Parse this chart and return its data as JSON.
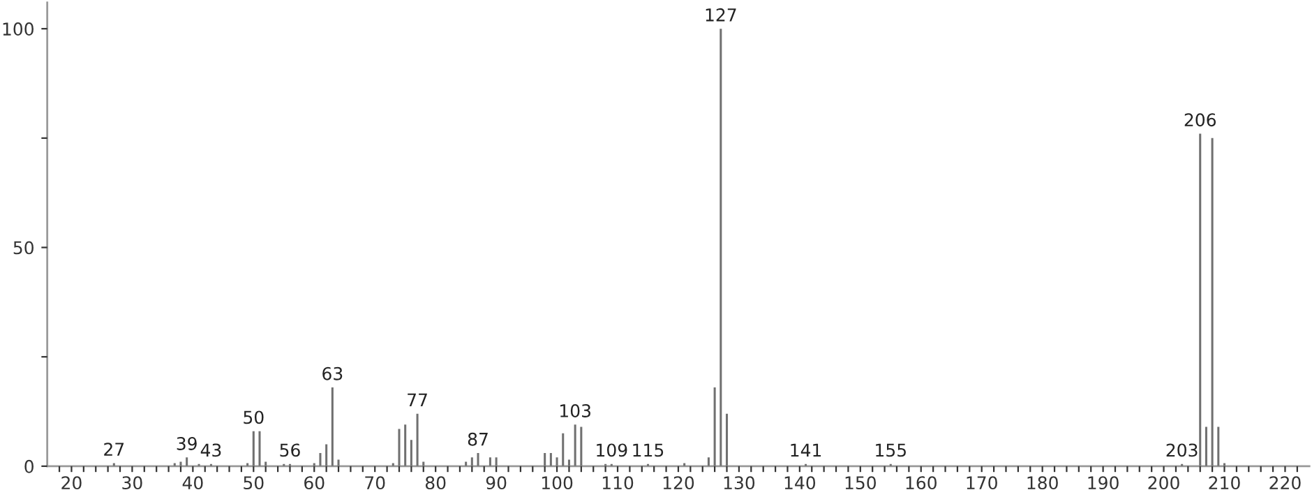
{
  "chart_data": {
    "type": "bar",
    "x": [
      27,
      37,
      38,
      39,
      41,
      43,
      49,
      50,
      51,
      52,
      55,
      56,
      60,
      61,
      62,
      63,
      64,
      73,
      74,
      75,
      76,
      77,
      78,
      85,
      86,
      87,
      89,
      90,
      98,
      99,
      100,
      101,
      102,
      103,
      104,
      108,
      109,
      115,
      121,
      125,
      126,
      127,
      128,
      141,
      155,
      203,
      206,
      207,
      208,
      209,
      210
    ],
    "values": [
      0.7,
      0.7,
      1,
      2,
      0.5,
      0.5,
      0.7,
      8,
      8,
      1,
      0.5,
      0.5,
      0.7,
      3,
      5,
      18,
      1.5,
      0.7,
      8.5,
      9.5,
      6,
      12,
      1,
      1,
      2,
      3,
      2,
      2,
      3,
      3,
      2,
      7.5,
      1.5,
      9.5,
      9,
      0.5,
      0.5,
      0.5,
      0.7,
      2,
      18,
      100,
      12,
      0.5,
      0.5,
      0.5,
      76,
      9,
      75,
      9,
      0.7
    ],
    "color": "#707070",
    "xlim": [
      16,
      224
    ],
    "ylim": [
      0,
      106
    ],
    "xticks": [
      {
        "value": 18,
        "label": null
      },
      20,
      {
        "value": 22,
        "label": null
      },
      {
        "value": 24,
        "label": null
      },
      {
        "value": 26,
        "label": null
      },
      {
        "value": 28,
        "label": null
      },
      30,
      {
        "value": 32,
        "label": null
      },
      {
        "value": 34,
        "label": null
      },
      {
        "value": 36,
        "label": null
      },
      {
        "value": 38,
        "label": null
      },
      40,
      {
        "value": 42,
        "label": null
      },
      {
        "value": 44,
        "label": null
      },
      {
        "value": 46,
        "label": null
      },
      {
        "value": 48,
        "label": null
      },
      50,
      {
        "value": 52,
        "label": null
      },
      {
        "value": 54,
        "label": null
      },
      {
        "value": 56,
        "label": null
      },
      {
        "value": 58,
        "label": null
      },
      60,
      {
        "value": 62,
        "label": null
      },
      {
        "value": 64,
        "label": null
      },
      {
        "value": 66,
        "label": null
      },
      {
        "value": 68,
        "label": null
      },
      70,
      {
        "value": 72,
        "label": null
      },
      {
        "value": 74,
        "label": null
      },
      {
        "value": 76,
        "label": null
      },
      {
        "value": 78,
        "label": null
      },
      80,
      {
        "value": 82,
        "label": null
      },
      {
        "value": 84,
        "label": null
      },
      {
        "value": 86,
        "label": null
      },
      {
        "value": 88,
        "label": null
      },
      90,
      {
        "value": 92,
        "label": null
      },
      {
        "value": 94,
        "label": null
      },
      {
        "value": 96,
        "label": null
      },
      {
        "value": 98,
        "label": null
      },
      100,
      {
        "value": 102,
        "label": null
      },
      {
        "value": 104,
        "label": null
      },
      {
        "value": 106,
        "label": null
      },
      {
        "value": 108,
        "label": null
      },
      110,
      {
        "value": 112,
        "label": null
      },
      {
        "value": 114,
        "label": null
      },
      {
        "value": 116,
        "label": null
      },
      {
        "value": 118,
        "label": null
      },
      120,
      {
        "value": 122,
        "label": null
      },
      {
        "value": 124,
        "label": null
      },
      {
        "value": 126,
        "label": null
      },
      {
        "value": 128,
        "label": null
      },
      130,
      {
        "value": 132,
        "label": null
      },
      {
        "value": 134,
        "label": null
      },
      {
        "value": 136,
        "label": null
      },
      {
        "value": 138,
        "label": null
      },
      140,
      {
        "value": 142,
        "label": null
      },
      {
        "value": 144,
        "label": null
      },
      {
        "value": 146,
        "label": null
      },
      {
        "value": 148,
        "label": null
      },
      150,
      {
        "value": 152,
        "label": null
      },
      {
        "value": 154,
        "label": null
      },
      {
        "value": 156,
        "label": null
      },
      {
        "value": 158,
        "label": null
      },
      160,
      {
        "value": 162,
        "label": null
      },
      {
        "value": 164,
        "label": null
      },
      {
        "value": 166,
        "label": null
      },
      {
        "value": 168,
        "label": null
      },
      170,
      {
        "value": 172,
        "label": null
      },
      {
        "value": 174,
        "label": null
      },
      {
        "value": 176,
        "label": null
      },
      {
        "value": 178,
        "label": null
      },
      180,
      {
        "value": 182,
        "label": null
      },
      {
        "value": 184,
        "label": null
      },
      {
        "value": 186,
        "label": null
      },
      {
        "value": 188,
        "label": null
      },
      190,
      {
        "value": 192,
        "label": null
      },
      {
        "value": 194,
        "label": null
      },
      {
        "value": 196,
        "label": null
      },
      {
        "value": 198,
        "label": null
      },
      200,
      {
        "value": 202,
        "label": null
      },
      {
        "value": 204,
        "label": null
      },
      {
        "value": 206,
        "label": null
      },
      {
        "value": 208,
        "label": null
      },
      210,
      {
        "value": 212,
        "label": null
      },
      {
        "value": 214,
        "label": null
      },
      {
        "value": 216,
        "label": null
      },
      {
        "value": 218,
        "label": null
      },
      220,
      {
        "value": 222,
        "label": null
      }
    ],
    "yticks": [
      0,
      {
        "value": 25,
        "label": null
      },
      50,
      {
        "value": 75,
        "label": null
      },
      100
    ],
    "grid": false,
    "annotations": [
      {
        "text": "27",
        "x": 27,
        "y": 0.7
      },
      {
        "text": "39",
        "x": 39,
        "y": 2
      },
      {
        "text": "43",
        "x": 43,
        "y": 0.5
      },
      {
        "text": "50",
        "x": 50,
        "y": 8
      },
      {
        "text": "56",
        "x": 56,
        "y": 0.5
      },
      {
        "text": "63",
        "x": 63,
        "y": 18
      },
      {
        "text": "77",
        "x": 77,
        "y": 12
      },
      {
        "text": "87",
        "x": 87,
        "y": 3
      },
      {
        "text": "103",
        "x": 103,
        "y": 9.5
      },
      {
        "text": "109",
        "x": 109,
        "y": 0.5
      },
      {
        "text": "115",
        "x": 115,
        "y": 0.5
      },
      {
        "text": "127",
        "x": 127,
        "y": 100
      },
      {
        "text": "141",
        "x": 141,
        "y": 0.5
      },
      {
        "text": "155",
        "x": 155,
        "y": 0.5
      },
      {
        "text": "203",
        "x": 203,
        "y": 0.5
      },
      {
        "text": "206",
        "x": 206,
        "y": 76
      }
    ]
  }
}
